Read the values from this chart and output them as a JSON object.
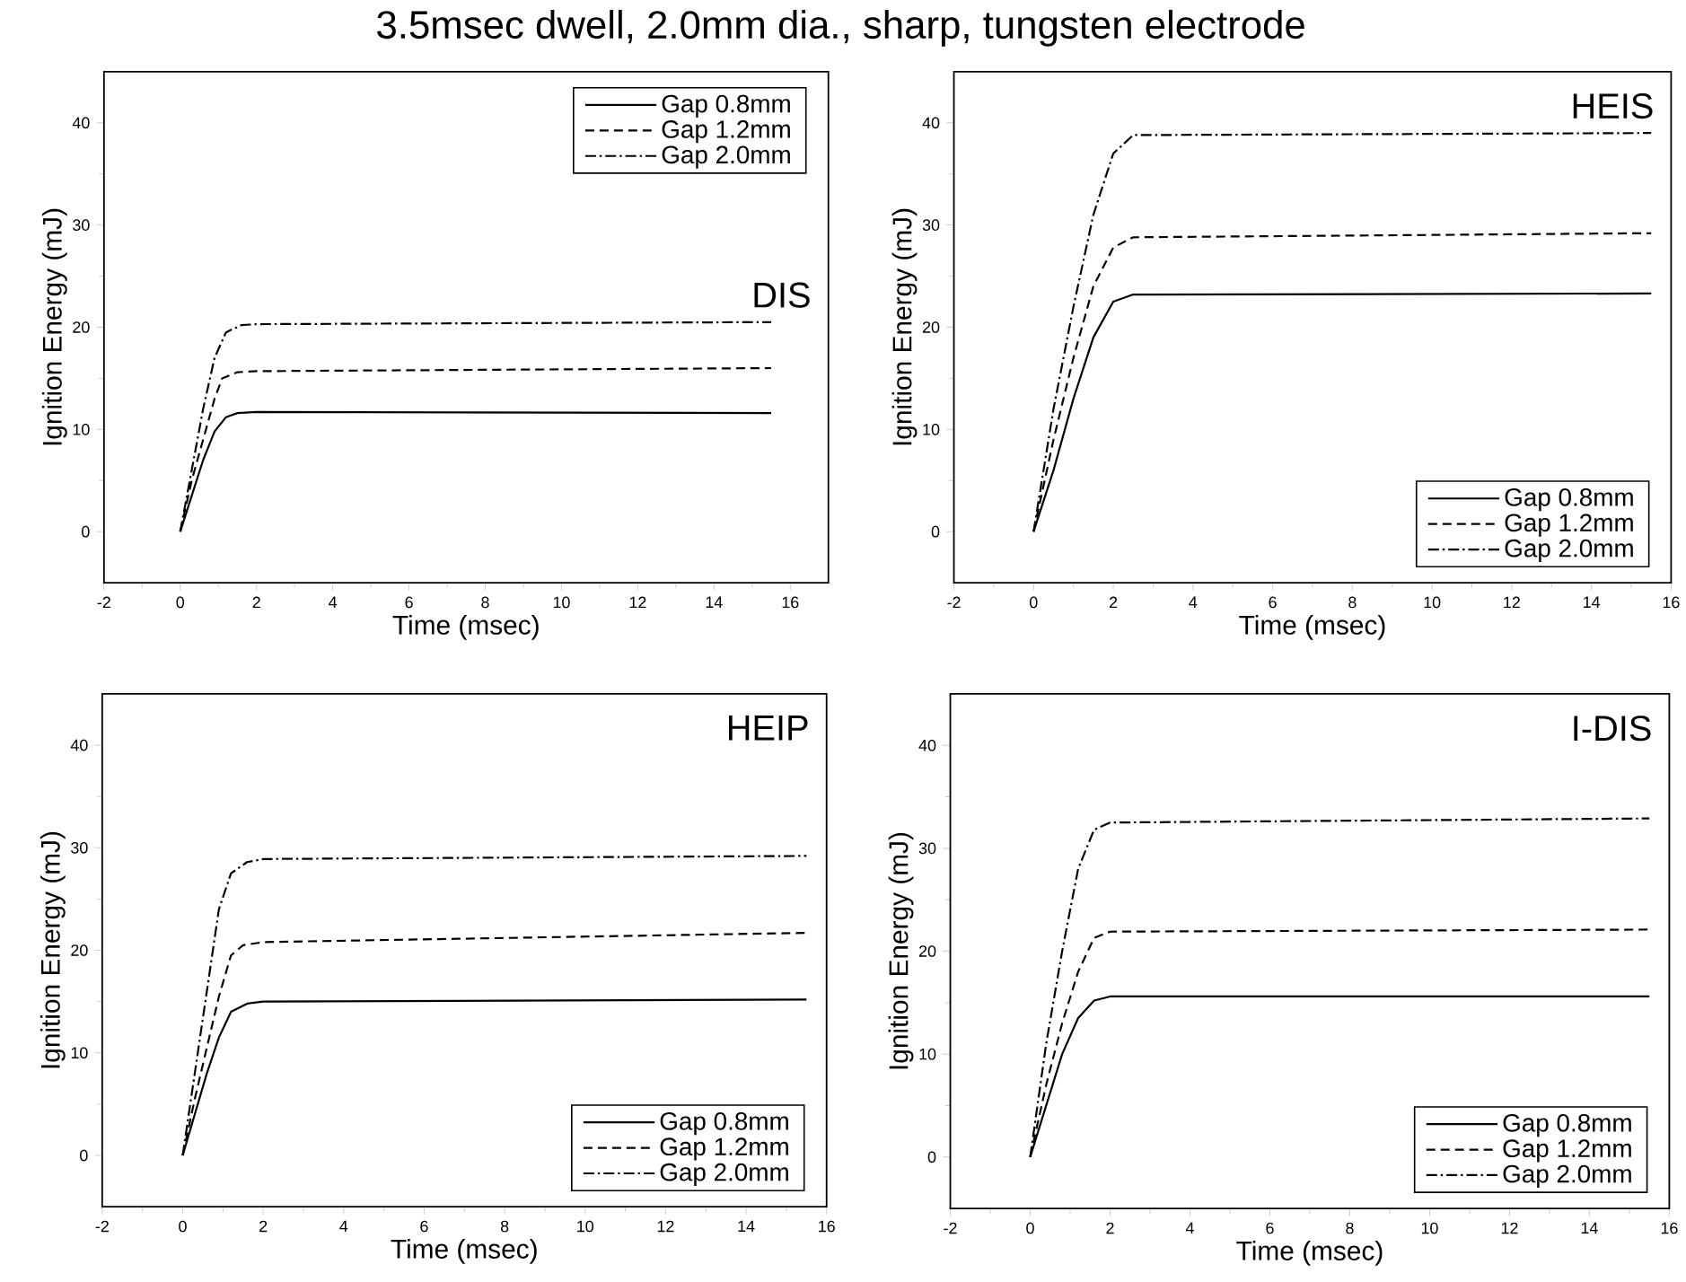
{
  "chart_data": [
    {
      "type": "line",
      "title": "3.5msec dwell, 2.0mm dia., sharp, tungsten electrode",
      "xlabel": "Time (msec)",
      "ylabel": "Ignition Energy (mJ)",
      "annotations": [
        "DIS"
      ],
      "xlim": [
        -2,
        17
      ],
      "ylim": [
        -5,
        45
      ],
      "xticks": [
        -2,
        0,
        2,
        4,
        6,
        8,
        10,
        12,
        14,
        16
      ],
      "yticks": [
        0,
        10,
        20,
        30,
        40
      ],
      "legend": "top right",
      "grid": false,
      "series": [
        {
          "name": "Gap 0.8mm",
          "color": "#000000",
          "line_style": "solid",
          "x": [
            0,
            0.3,
            0.6,
            0.9,
            1.2,
            1.5,
            2,
            15.5
          ],
          "values": [
            0,
            3.5,
            7,
            9.8,
            11.2,
            11.6,
            11.7,
            11.6
          ]
        },
        {
          "name": "Gap 1.2mm",
          "color": "#000000",
          "line_style": "dashed",
          "x": [
            0,
            0.3,
            0.6,
            0.9,
            1.1,
            1.5,
            2,
            15.5
          ],
          "values": [
            0,
            5,
            9,
            13,
            15,
            15.6,
            15.7,
            16
          ]
        },
        {
          "name": "Gap 2.0mm",
          "color": "#000000",
          "line_style": "dashdot",
          "x": [
            0,
            0.3,
            0.6,
            0.9,
            1.2,
            1.6,
            2,
            15.5
          ],
          "values": [
            0,
            6,
            12,
            17,
            19.5,
            20.2,
            20.3,
            20.5
          ]
        }
      ]
    },
    {
      "type": "line",
      "xlabel": "Time (msec)",
      "ylabel": "Ignition Energy (mJ)",
      "annotations": [
        "HEIS"
      ],
      "xlim": [
        -2,
        16
      ],
      "ylim": [
        -5,
        45
      ],
      "xticks": [
        -2,
        0,
        2,
        4,
        6,
        8,
        10,
        12,
        14,
        16
      ],
      "yticks": [
        0,
        10,
        20,
        30,
        40
      ],
      "legend": "bottom right",
      "grid": false,
      "series": [
        {
          "name": "Gap 0.8mm",
          "color": "#000000",
          "line_style": "solid",
          "x": [
            0,
            0.5,
            1,
            1.5,
            2,
            2.5,
            15.5
          ],
          "values": [
            0,
            6,
            13,
            19,
            22.5,
            23.2,
            23.3
          ]
        },
        {
          "name": "Gap 1.2mm",
          "color": "#000000",
          "line_style": "dashed",
          "x": [
            0,
            0.5,
            1,
            1.5,
            2,
            2.5,
            15.5
          ],
          "values": [
            0,
            9,
            17,
            24,
            27.8,
            28.8,
            29.2
          ]
        },
        {
          "name": "Gap 2.0mm",
          "color": "#000000",
          "line_style": "dashdot",
          "x": [
            0,
            0.5,
            1,
            1.5,
            2,
            2.5,
            15.5
          ],
          "values": [
            0,
            12,
            22,
            31,
            37,
            38.8,
            39
          ]
        }
      ]
    },
    {
      "type": "line",
      "xlabel": "Time (msec)",
      "ylabel": "Ignition Energy (mJ)",
      "annotations": [
        "HEIP"
      ],
      "xlim": [
        -2,
        16
      ],
      "ylim": [
        -5,
        45
      ],
      "xticks": [
        -2,
        0,
        2,
        4,
        6,
        8,
        10,
        12,
        14,
        16
      ],
      "yticks": [
        0,
        10,
        20,
        30,
        40
      ],
      "legend": "bottom right",
      "grid": false,
      "series": [
        {
          "name": "Gap 0.8mm",
          "color": "#000000",
          "line_style": "solid",
          "x": [
            0,
            0.3,
            0.6,
            0.9,
            1.2,
            1.6,
            2,
            15.5
          ],
          "values": [
            0,
            4,
            8,
            11.5,
            14,
            14.8,
            15,
            15.2
          ]
        },
        {
          "name": "Gap 1.2mm",
          "color": "#000000",
          "line_style": "dashed",
          "x": [
            0,
            0.3,
            0.6,
            0.9,
            1.2,
            1.5,
            2,
            15.5
          ],
          "values": [
            0,
            5.5,
            10.5,
            15.5,
            19.5,
            20.5,
            20.8,
            21.7
          ]
        },
        {
          "name": "Gap 2.0mm",
          "color": "#000000",
          "line_style": "dashdot",
          "x": [
            0,
            0.3,
            0.6,
            0.9,
            1.2,
            1.6,
            2,
            15.5
          ],
          "values": [
            0,
            8,
            16,
            24,
            27.5,
            28.6,
            28.9,
            29.2
          ]
        }
      ]
    },
    {
      "type": "line",
      "xlabel": "Time (msec)",
      "ylabel": "Ignition Energy (mJ)",
      "annotations": [
        "I-DIS"
      ],
      "xlim": [
        -2,
        16
      ],
      "ylim": [
        -5,
        45
      ],
      "xticks": [
        -2,
        0,
        2,
        4,
        6,
        8,
        10,
        12,
        14,
        16
      ],
      "yticks": [
        0,
        10,
        20,
        30,
        40
      ],
      "legend": "bottom right",
      "grid": false,
      "series": [
        {
          "name": "Gap 0.8mm",
          "color": "#000000",
          "line_style": "solid",
          "x": [
            0,
            0.4,
            0.8,
            1.2,
            1.6,
            2,
            15.5
          ],
          "values": [
            0,
            5,
            10,
            13.5,
            15.2,
            15.6,
            15.6
          ]
        },
        {
          "name": "Gap 1.2mm",
          "color": "#000000",
          "line_style": "dashed",
          "x": [
            0,
            0.4,
            0.8,
            1.2,
            1.6,
            2,
            15.5
          ],
          "values": [
            0,
            7,
            13,
            18,
            21.3,
            21.9,
            22.1
          ]
        },
        {
          "name": "Gap 2.0mm",
          "color": "#000000",
          "line_style": "dashdot",
          "x": [
            0,
            0.4,
            0.8,
            1.2,
            1.6,
            2,
            15.5
          ],
          "values": [
            0,
            11,
            20,
            28,
            31.8,
            32.5,
            32.9
          ]
        }
      ]
    }
  ]
}
